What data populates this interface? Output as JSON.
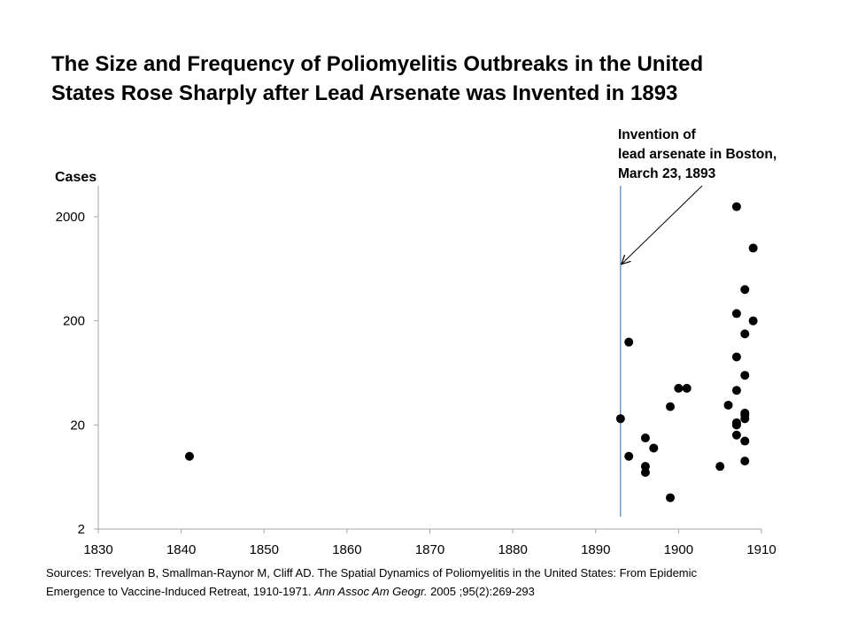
{
  "chart_data": {
    "type": "scatter",
    "title_lines": [
      "The Size and Frequency of Poliomyelitis Outbreaks in the United",
      "States Rose Sharply after Lead Arsenate was Invented in 1893"
    ],
    "ylabel": "Cases",
    "xlabel": "",
    "y_scale": "log",
    "xlim": [
      1830,
      1910
    ],
    "ylim": [
      2,
      4000
    ],
    "x_ticks": [
      1830,
      1840,
      1850,
      1860,
      1870,
      1880,
      1890,
      1900,
      1910
    ],
    "y_ticks": [
      2,
      20,
      200,
      2000
    ],
    "grid": false,
    "marker_color": "#000000",
    "reference_line": {
      "x": 1893,
      "color": "#4f81bd"
    },
    "annotation": {
      "lines": [
        "Invention of",
        "lead arsenate in Boston,",
        "March 23, 1893"
      ],
      "points_to": {
        "x": 1893,
        "y": 700
      }
    },
    "points": [
      {
        "x": 1841,
        "y": 10
      },
      {
        "x": 1893,
        "y": 23
      },
      {
        "x": 1894,
        "y": 125
      },
      {
        "x": 1894,
        "y": 10
      },
      {
        "x": 1896,
        "y": 15
      },
      {
        "x": 1896,
        "y": 8
      },
      {
        "x": 1896,
        "y": 7
      },
      {
        "x": 1897,
        "y": 12
      },
      {
        "x": 1899,
        "y": 30
      },
      {
        "x": 1899,
        "y": 4
      },
      {
        "x": 1900,
        "y": 45
      },
      {
        "x": 1901,
        "y": 45
      },
      {
        "x": 1905,
        "y": 8
      },
      {
        "x": 1906,
        "y": 31
      },
      {
        "x": 1907,
        "y": 2500
      },
      {
        "x": 1907,
        "y": 235
      },
      {
        "x": 1907,
        "y": 90
      },
      {
        "x": 1907,
        "y": 43
      },
      {
        "x": 1907,
        "y": 21
      },
      {
        "x": 1907,
        "y": 20
      },
      {
        "x": 1907,
        "y": 16
      },
      {
        "x": 1908,
        "y": 400
      },
      {
        "x": 1908,
        "y": 150
      },
      {
        "x": 1908,
        "y": 60
      },
      {
        "x": 1908,
        "y": 26
      },
      {
        "x": 1908,
        "y": 25
      },
      {
        "x": 1908,
        "y": 23
      },
      {
        "x": 1908,
        "y": 14
      },
      {
        "x": 1908,
        "y": 9
      },
      {
        "x": 1909,
        "y": 1000
      },
      {
        "x": 1909,
        "y": 200
      }
    ]
  },
  "sources": {
    "line1": "Sources: Trevelyan B, Smallman-Raynor M, Cliff AD. The Spatial Dynamics of Poliomyelitis in the United States: From Epidemic",
    "line2_before": "Emergence to Vaccine-Induced Retreat, 1910-1971. ",
    "line2_journal": "Ann Assoc Am Geogr.",
    "line2_after": " 2005 ;95(2):269-293"
  }
}
